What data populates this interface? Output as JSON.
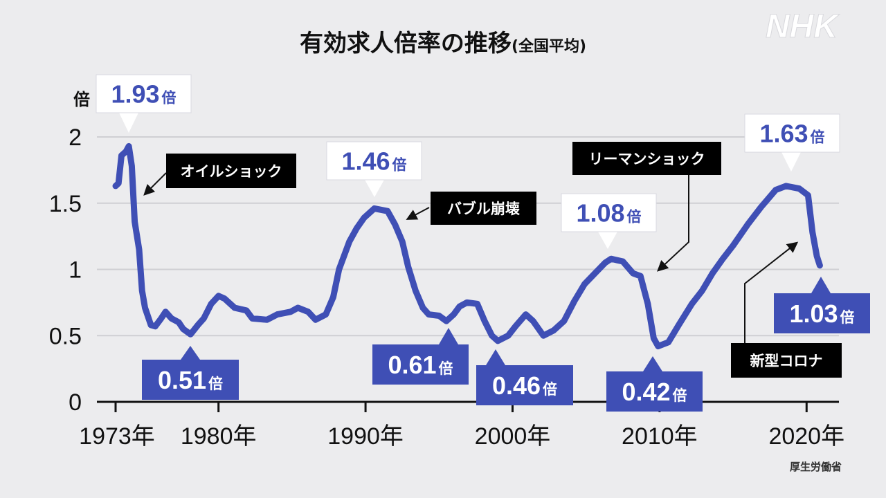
{
  "chart_data": {
    "type": "line",
    "title": "有効求人倍率の推移",
    "subtitle": "(全国平均)",
    "ylabel": "倍",
    "ylim": [
      0,
      2
    ],
    "yticks": [
      0,
      0.5,
      1,
      1.5,
      2
    ],
    "ytick_labels": [
      "0",
      "0.5",
      "1",
      "1.5",
      "2"
    ],
    "xlim": [
      1973,
      2021
    ],
    "xticks": [
      1973,
      1980,
      1990,
      2000,
      2010,
      2020
    ],
    "xtick_labels": [
      "1973年",
      "1980年",
      "1990年",
      "2000年",
      "2010年",
      "2020年"
    ],
    "grid": "horizontal",
    "line_color": "#3f4fb5",
    "series": [
      {
        "x": [
          1973.0,
          1973.2,
          1973.4,
          1973.7,
          1973.9,
          1974.1,
          1974.3,
          1974.6,
          1974.8,
          1975.0,
          1975.4,
          1975.7,
          1976.1,
          1976.4,
          1976.8,
          1977.3,
          1977.6,
          1978.1,
          1978.6,
          1979.0,
          1979.5,
          1980.0,
          1980.4,
          1981.1,
          1981.9,
          1982.3,
          1983.3,
          1984.0,
          1984.9,
          1985.4,
          1986.1,
          1986.6,
          1987.3,
          1987.8,
          1988.2,
          1988.9,
          1989.4,
          1989.9,
          1990.6,
          1991.5,
          1992.0,
          1992.5,
          1992.9,
          1993.4,
          1993.9,
          1994.3,
          1995.0,
          1995.5,
          1996.0,
          1996.4,
          1996.9,
          1997.6,
          1998.1,
          1998.6,
          1999.0,
          1999.7,
          2000.2,
          2000.9,
          2001.4,
          2002.1,
          2002.8,
          2003.5,
          2004.2,
          2004.9,
          2005.6,
          2006.3,
          2006.7,
          2007.5,
          2008.2,
          2008.7,
          2009.2,
          2009.6,
          2009.9,
          2010.6,
          2011.3,
          2012.2,
          2012.9,
          2013.6,
          2014.3,
          2015.0,
          2016.0,
          2016.9,
          2017.9,
          2018.6,
          2019.5,
          2020.1,
          2020.4,
          2020.7,
          2020.9
        ],
        "y": [
          1.63,
          1.65,
          1.86,
          1.89,
          1.93,
          1.78,
          1.36,
          1.15,
          0.84,
          0.71,
          0.58,
          0.57,
          0.63,
          0.68,
          0.63,
          0.6,
          0.55,
          0.51,
          0.58,
          0.63,
          0.74,
          0.8,
          0.78,
          0.71,
          0.69,
          0.63,
          0.62,
          0.66,
          0.68,
          0.71,
          0.68,
          0.62,
          0.66,
          0.79,
          1.0,
          1.21,
          1.31,
          1.39,
          1.46,
          1.44,
          1.34,
          1.21,
          1.02,
          0.84,
          0.71,
          0.66,
          0.65,
          0.61,
          0.66,
          0.72,
          0.75,
          0.74,
          0.61,
          0.5,
          0.46,
          0.5,
          0.57,
          0.66,
          0.61,
          0.5,
          0.54,
          0.61,
          0.76,
          0.89,
          0.97,
          1.05,
          1.08,
          1.06,
          0.97,
          0.95,
          0.74,
          0.48,
          0.42,
          0.45,
          0.58,
          0.74,
          0.84,
          0.97,
          1.08,
          1.18,
          1.34,
          1.47,
          1.6,
          1.63,
          1.61,
          1.56,
          1.28,
          1.1,
          1.03
        ]
      }
    ],
    "value_labels": [
      {
        "value": "1.93",
        "unit": "倍",
        "style": "white"
      },
      {
        "value": "0.51",
        "unit": "倍",
        "style": "blue"
      },
      {
        "value": "1.46",
        "unit": "倍",
        "style": "white"
      },
      {
        "value": "0.61",
        "unit": "倍",
        "style": "blue"
      },
      {
        "value": "0.46",
        "unit": "倍",
        "style": "blue"
      },
      {
        "value": "1.08",
        "unit": "倍",
        "style": "white"
      },
      {
        "value": "0.42",
        "unit": "倍",
        "style": "blue"
      },
      {
        "value": "1.63",
        "unit": "倍",
        "style": "white"
      },
      {
        "value": "1.03",
        "unit": "倍",
        "style": "blue"
      }
    ],
    "annotations": [
      "オイルショック",
      "バブル崩壊",
      "リーマンショック",
      "新型コロナ"
    ],
    "source": "厚生労働省"
  },
  "brand": {
    "logo": "NHK"
  },
  "colors": {
    "accent": "#3f4fb5",
    "background": "#ececee",
    "event_box": "#000000"
  }
}
